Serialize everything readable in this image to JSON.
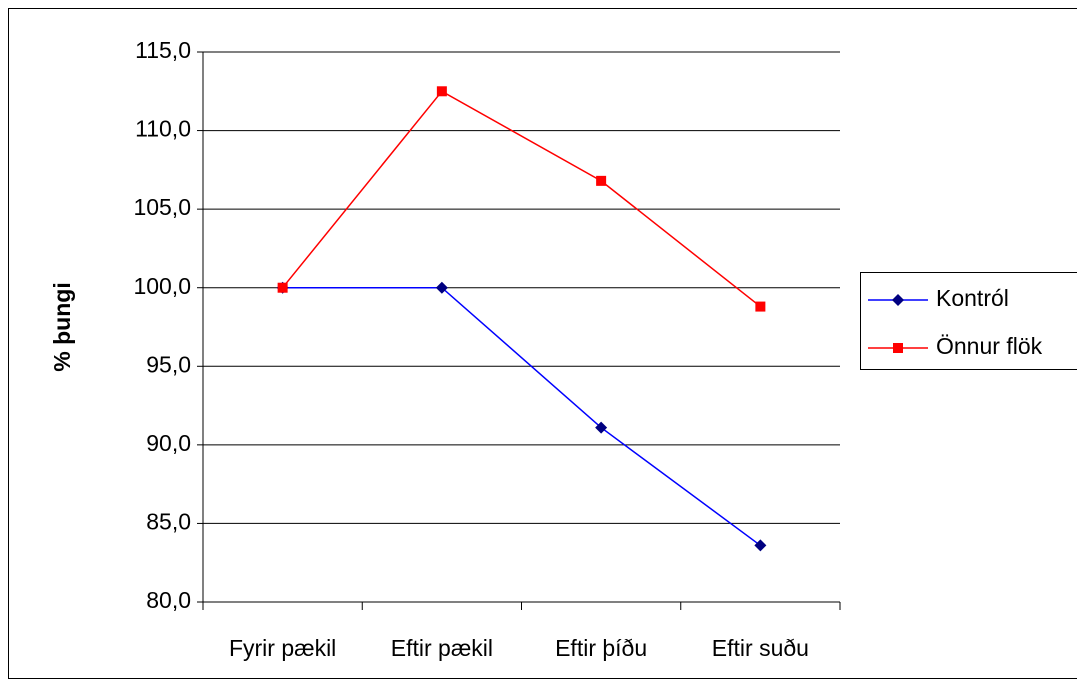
{
  "chart_data": {
    "type": "line",
    "ylabel": "% þungi",
    "categories": [
      "Fyrir pækil",
      "Eftir pækil",
      "Eftir þíðu",
      "Eftir suðu"
    ],
    "series": [
      {
        "name": "Kontról",
        "color": "#0000ff",
        "marker_color": "#000080",
        "marker": "diamond",
        "values": [
          100.0,
          100.0,
          91.1,
          83.6
        ]
      },
      {
        "name": "Önnur flök",
        "color": "#ff0000",
        "marker_color": "#ff0000",
        "marker": "square",
        "values": [
          100.0,
          112.5,
          106.8,
          98.8
        ]
      }
    ],
    "ylim": [
      80,
      115
    ],
    "yticks": [
      {
        "value": 80,
        "label": "80,0"
      },
      {
        "value": 85,
        "label": "85,0"
      },
      {
        "value": 90,
        "label": "90,0"
      },
      {
        "value": 95,
        "label": "95,0"
      },
      {
        "value": 100,
        "label": "100,0"
      },
      {
        "value": 105,
        "label": "105,0"
      },
      {
        "value": 110,
        "label": "110,0"
      },
      {
        "value": 115,
        "label": "115,0"
      }
    ],
    "grid": true,
    "legend": "right"
  }
}
